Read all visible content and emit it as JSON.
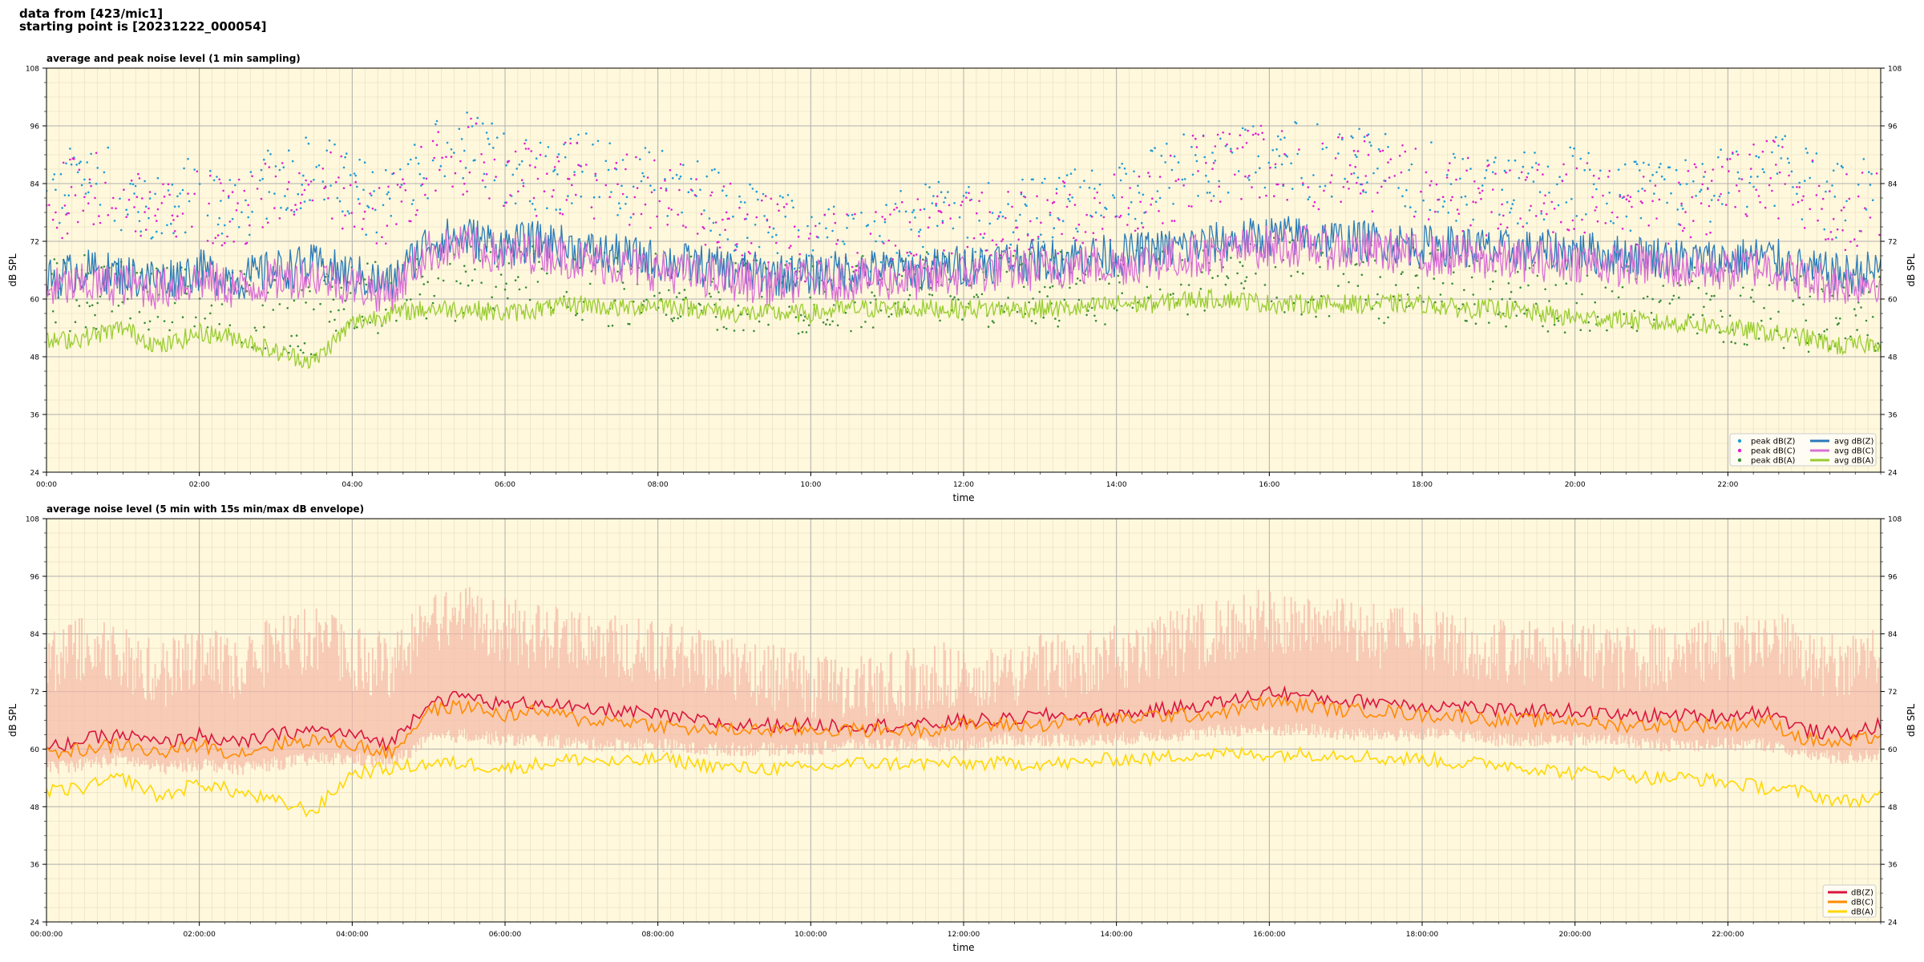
{
  "header": {
    "line1": "data from [423/mic1]",
    "line2": "starting point is [20231222_000054]"
  },
  "chart_data": [
    {
      "type": "line",
      "title": "average and peak noise level (1 min sampling)",
      "xlabel": "time",
      "ylabel": "dB SPL",
      "xlim": [
        0,
        24
      ],
      "ylim": [
        24,
        108
      ],
      "yticks": [
        24,
        36,
        48,
        60,
        72,
        84,
        96,
        108
      ],
      "xtick_labels": [
        "00:00",
        "02:00",
        "04:00",
        "06:00",
        "08:00",
        "10:00",
        "12:00",
        "14:00",
        "16:00",
        "18:00",
        "20:00",
        "22:00"
      ],
      "grid": true,
      "background": "#fff8dc",
      "legend_position": "lower-right",
      "x_hours": [
        0.0,
        0.5,
        1.0,
        1.5,
        2.0,
        2.5,
        3.0,
        3.5,
        4.0,
        4.5,
        5.0,
        5.5,
        6.0,
        6.5,
        7.0,
        7.5,
        8.0,
        8.5,
        9.0,
        9.5,
        10.0,
        10.5,
        11.0,
        11.5,
        12.0,
        12.5,
        13.0,
        13.5,
        14.0,
        14.5,
        15.0,
        15.5,
        16.0,
        16.5,
        17.0,
        17.5,
        18.0,
        18.5,
        19.0,
        19.5,
        20.0,
        20.5,
        21.0,
        21.5,
        22.0,
        22.5,
        23.0,
        23.5,
        24.0
      ],
      "series": [
        {
          "name": "peak dB(Z)",
          "kind": "points",
          "color": "#1f9bd6",
          "values": [
            80,
            86,
            82,
            78,
            83,
            79,
            84,
            88,
            82,
            80,
            89,
            92,
            88,
            86,
            87,
            85,
            84,
            82,
            78,
            75,
            73,
            72,
            74,
            76,
            77,
            76,
            78,
            80,
            82,
            84,
            88,
            90,
            91,
            88,
            90,
            87,
            86,
            84,
            82,
            83,
            84,
            82,
            80,
            82,
            84,
            88,
            84,
            80,
            82
          ]
        },
        {
          "name": "peak dB(C)",
          "kind": "points",
          "color": "#e020d0",
          "values": [
            78,
            84,
            80,
            76,
            80,
            77,
            82,
            86,
            80,
            78,
            87,
            90,
            86,
            84,
            85,
            83,
            82,
            80,
            76,
            73,
            71,
            70,
            72,
            74,
            75,
            74,
            76,
            78,
            80,
            82,
            86,
            88,
            89,
            86,
            88,
            85,
            84,
            82,
            80,
            81,
            82,
            80,
            78,
            80,
            82,
            86,
            82,
            78,
            80
          ]
        },
        {
          "name": "peak dB(A)",
          "kind": "points",
          "color": "#3a8d3a",
          "values": [
            60,
            62,
            61,
            60,
            59,
            58,
            57,
            56,
            60,
            61,
            62,
            63,
            64,
            63,
            62,
            62,
            63,
            62,
            61,
            61,
            60,
            61,
            61,
            62,
            61,
            61,
            62,
            62,
            63,
            63,
            64,
            64,
            65,
            64,
            64,
            63,
            63,
            62,
            62,
            61,
            61,
            60,
            60,
            59,
            58,
            58,
            57,
            56,
            57
          ]
        },
        {
          "name": "avg dB(Z)",
          "kind": "line",
          "color": "#2b7bb9",
          "values": [
            64,
            66,
            65,
            64,
            66,
            64,
            66,
            67,
            65,
            63,
            72,
            73,
            71,
            72,
            70,
            69,
            68,
            67,
            66,
            65,
            65,
            66,
            66,
            66,
            67,
            68,
            68,
            69,
            69,
            70,
            71,
            72,
            73,
            73,
            72,
            72,
            71,
            71,
            70,
            70,
            70,
            69,
            69,
            68,
            68,
            69,
            66,
            65,
            66
          ]
        },
        {
          "name": "avg dB(C)",
          "kind": "line",
          "color": "#da70d6",
          "values": [
            62,
            63,
            63,
            62,
            64,
            62,
            64,
            65,
            63,
            61,
            70,
            71,
            69,
            70,
            68,
            67,
            66,
            65,
            64,
            63,
            64,
            64,
            64,
            64,
            65,
            66,
            66,
            67,
            67,
            68,
            69,
            70,
            71,
            71,
            70,
            70,
            69,
            69,
            68,
            68,
            68,
            67,
            67,
            66,
            66,
            67,
            64,
            63,
            64
          ]
        },
        {
          "name": "avg dB(A)",
          "kind": "line",
          "color": "#9acd32",
          "values": [
            51,
            52,
            54,
            50,
            53,
            52,
            49,
            47,
            55,
            57,
            58,
            58,
            57,
            58,
            59,
            58,
            59,
            58,
            57,
            57,
            57,
            58,
            58,
            58,
            58,
            58,
            58,
            58,
            59,
            59,
            60,
            60,
            59,
            59,
            59,
            59,
            59,
            58,
            58,
            57,
            56,
            56,
            55,
            55,
            54,
            53,
            52,
            50,
            51
          ]
        }
      ]
    },
    {
      "type": "line",
      "title": "average noise level (5 min with 15s min/max dB envelope)",
      "xlabel": "time",
      "ylabel": "dB SPL",
      "xlim": [
        0,
        24
      ],
      "ylim": [
        24,
        108
      ],
      "yticks": [
        24,
        36,
        48,
        60,
        72,
        84,
        96,
        108
      ],
      "xtick_labels": [
        "00:00:00",
        "02:00:00",
        "04:00:00",
        "06:00:00",
        "08:00:00",
        "10:00:00",
        "12:00:00",
        "14:00:00",
        "16:00:00",
        "18:00:00",
        "20:00:00",
        "22:00:00"
      ],
      "grid": true,
      "background": "#fff8dc",
      "legend_position": "lower-right",
      "envelope_color": "#f5b9a6",
      "x_hours": [
        0.0,
        0.5,
        1.0,
        1.5,
        2.0,
        2.5,
        3.0,
        3.5,
        4.0,
        4.5,
        5.0,
        5.5,
        6.0,
        6.5,
        7.0,
        7.5,
        8.0,
        8.5,
        9.0,
        9.5,
        10.0,
        10.5,
        11.0,
        11.5,
        12.0,
        12.5,
        13.0,
        13.5,
        14.0,
        14.5,
        15.0,
        15.5,
        16.0,
        16.5,
        17.0,
        17.5,
        18.0,
        18.5,
        19.0,
        19.5,
        20.0,
        20.5,
        21.0,
        21.5,
        22.0,
        22.5,
        23.0,
        23.5,
        24.0
      ],
      "envelope_max": [
        84,
        88,
        86,
        82,
        86,
        84,
        88,
        90,
        86,
        84,
        92,
        94,
        92,
        90,
        90,
        88,
        88,
        86,
        84,
        82,
        80,
        80,
        80,
        82,
        83,
        82,
        84,
        85,
        86,
        88,
        90,
        92,
        94,
        92,
        92,
        90,
        90,
        88,
        88,
        87,
        88,
        86,
        86,
        86,
        88,
        90,
        86,
        84,
        86
      ],
      "envelope_min": [
        56,
        57,
        58,
        56,
        57,
        56,
        57,
        58,
        58,
        57,
        62,
        63,
        62,
        62,
        61,
        61,
        61,
        60,
        60,
        60,
        60,
        61,
        61,
        61,
        61,
        62,
        62,
        62,
        62,
        63,
        63,
        64,
        64,
        64,
        63,
        63,
        63,
        63,
        62,
        62,
        62,
        62,
        61,
        61,
        61,
        61,
        59,
        58,
        59
      ],
      "series": [
        {
          "name": "dB(Z)",
          "color": "#dc143c",
          "values": [
            60,
            62,
            63,
            61,
            63,
            61,
            63,
            64,
            63,
            61,
            70,
            71,
            69,
            70,
            68,
            68,
            67,
            66,
            65,
            65,
            65,
            65,
            65,
            65,
            66,
            66,
            67,
            67,
            67,
            68,
            69,
            70,
            72,
            71,
            70,
            70,
            69,
            69,
            68,
            68,
            68,
            67,
            67,
            67,
            67,
            68,
            64,
            63,
            65
          ]
        },
        {
          "name": "dB(C)",
          "color": "#ff8c00",
          "values": [
            59,
            60,
            61,
            59,
            61,
            59,
            61,
            62,
            61,
            59,
            68,
            69,
            67,
            68,
            66,
            66,
            65,
            64,
            64,
            64,
            64,
            64,
            64,
            64,
            65,
            65,
            65,
            66,
            66,
            67,
            67,
            68,
            70,
            69,
            68,
            68,
            67,
            67,
            66,
            66,
            66,
            65,
            65,
            65,
            65,
            66,
            62,
            61,
            63
          ]
        },
        {
          "name": "dB(A)",
          "color": "#ffd700",
          "values": [
            51,
            52,
            54,
            50,
            53,
            51,
            49,
            47,
            55,
            56,
            57,
            57,
            56,
            57,
            58,
            57,
            58,
            57,
            56,
            56,
            56,
            57,
            57,
            57,
            57,
            57,
            57,
            57,
            58,
            58,
            59,
            59,
            59,
            59,
            59,
            58,
            58,
            57,
            57,
            56,
            55,
            55,
            54,
            54,
            53,
            52,
            51,
            49,
            50
          ]
        }
      ]
    }
  ]
}
